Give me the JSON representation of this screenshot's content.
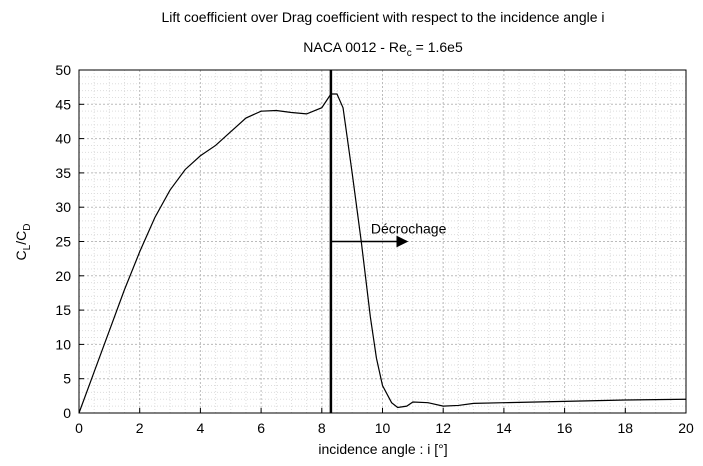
{
  "chart_data": {
    "type": "line",
    "title": "Lift coefficient over Drag coefficient with respect to the incidence angle i",
    "subtitle": [
      "NACA 0012 - Re",
      "c",
      " = 1.6e5"
    ],
    "xlabel": "incidence angle : i [°]",
    "ylabel": [
      "C",
      "L",
      "/C",
      "D"
    ],
    "x": [
      0,
      0.5,
      1,
      1.5,
      2,
      2.5,
      3,
      3.5,
      4,
      4.5,
      5,
      5.5,
      6,
      6.5,
      7,
      7.5,
      8,
      8.3,
      8.5,
      8.7,
      9,
      9.3,
      9.6,
      9.8,
      10,
      10.3,
      10.5,
      10.8,
      11,
      11.5,
      12,
      12.5,
      13,
      14,
      16,
      18,
      20
    ],
    "series": [
      {
        "color": "#000000",
        "values": [
          0,
          6,
          12,
          18,
          23.5,
          28.5,
          32.5,
          35.5,
          37.5,
          39,
          41,
          43,
          44,
          44.1,
          43.8,
          43.6,
          44.5,
          46.5,
          46.5,
          44.5,
          35,
          25,
          14,
          8,
          4,
          1.5,
          0.8,
          1,
          1.6,
          1.5,
          1,
          1.1,
          1.4,
          1.5,
          1.7,
          1.9,
          2
        ]
      }
    ],
    "xlim": [
      0,
      20
    ],
    "xticks": [
      0,
      2,
      4,
      6,
      8,
      10,
      12,
      14,
      16,
      18,
      20
    ],
    "ylim": [
      0,
      50
    ],
    "yticks": [
      0,
      5,
      10,
      15,
      20,
      25,
      30,
      35,
      40,
      45,
      50
    ],
    "grid": true,
    "annotation": {
      "text": "Décrochage",
      "x": 8.3,
      "arrow_y": 25,
      "arrow_to": 10.8
    }
  }
}
